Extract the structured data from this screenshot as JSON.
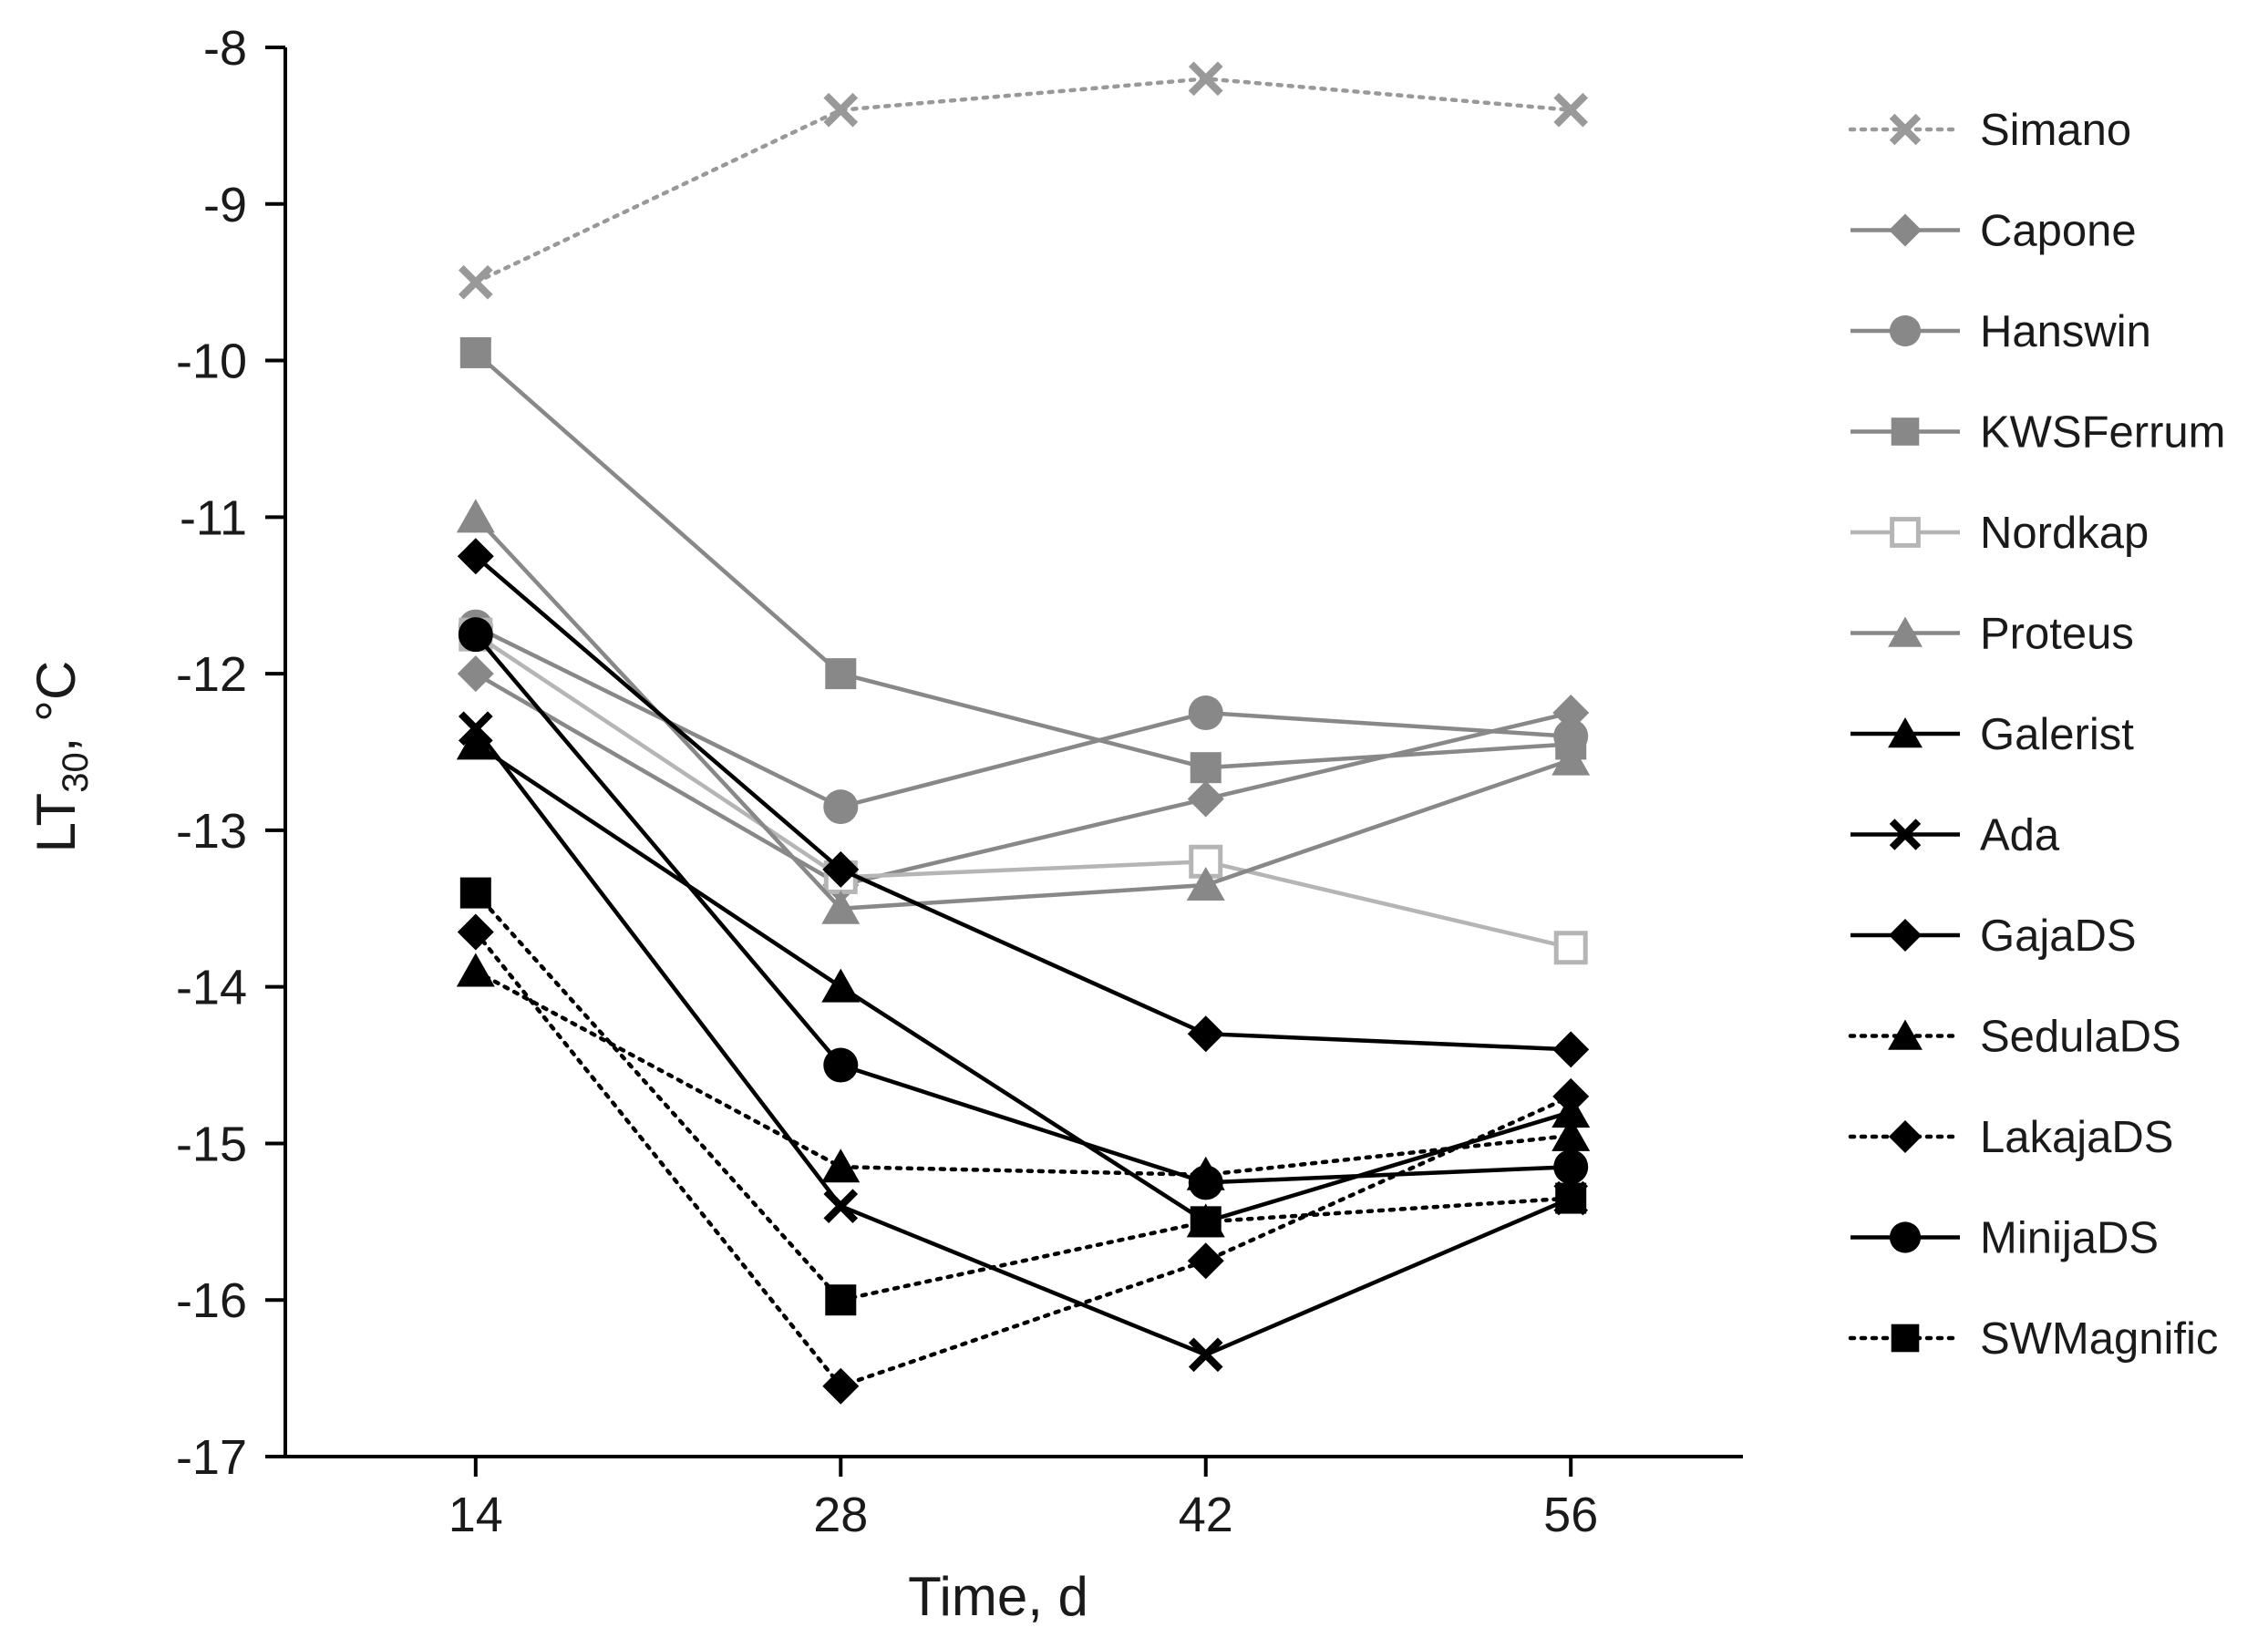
{
  "chart_data": {
    "type": "line",
    "title": "",
    "xlabel": "Time, d",
    "ylabel": {
      "main": "LT",
      "sub": "30",
      "unit": ", °C"
    },
    "x": [
      14,
      28,
      42,
      56
    ],
    "x_tick_labels": [
      "14",
      "28",
      "42",
      "56"
    ],
    "xlim": [
      6.7,
      62.6
    ],
    "ylim": [
      -17,
      -8
    ],
    "y_ticks": [
      -8,
      -9,
      -10,
      -11,
      -12,
      -13,
      -14,
      -15,
      -16,
      -17
    ],
    "y_tick_labels": [
      "-8",
      "-9",
      "-10",
      "-11",
      "-12",
      "-13",
      "-14",
      "-15",
      "-16",
      "-17"
    ],
    "grid": false,
    "legend_position": "right",
    "series": [
      {
        "name": "Simano",
        "values": [
          -9.5,
          -8.4,
          -8.2,
          -8.4
        ],
        "color": "#999999",
        "marker": "x",
        "line": "dotted"
      },
      {
        "name": "Capone",
        "values": [
          -12.0,
          -13.35,
          -12.8,
          -12.25
        ],
        "color": "#888888",
        "marker": "diamond",
        "line": "solid"
      },
      {
        "name": "Hanswin",
        "values": [
          -11.7,
          -12.85,
          -12.25,
          -12.4
        ],
        "color": "#888888",
        "marker": "circle",
        "line": "solid"
      },
      {
        "name": "KWSFerrum",
        "values": [
          -9.95,
          -12.0,
          -12.6,
          -12.45
        ],
        "color": "#888888",
        "marker": "square",
        "line": "solid"
      },
      {
        "name": "Nordkap",
        "values": [
          -11.75,
          -13.3,
          -13.2,
          -13.75
        ],
        "color": "#b5b5b5",
        "marker": "square-open",
        "line": "solid"
      },
      {
        "name": "Proteus",
        "values": [
          -11.0,
          -13.5,
          -13.35,
          -12.55
        ],
        "color": "#888888",
        "marker": "triangle",
        "line": "solid"
      },
      {
        "name": "Galerist",
        "values": [
          -12.45,
          -14.0,
          -15.5,
          -14.8
        ],
        "color": "#000000",
        "marker": "triangle",
        "line": "solid"
      },
      {
        "name": "Ada",
        "values": [
          -12.35,
          -15.4,
          -16.35,
          -15.35
        ],
        "color": "#000000",
        "marker": "x",
        "line": "solid"
      },
      {
        "name": "GajaDS",
        "values": [
          -11.25,
          -13.25,
          -14.3,
          -14.4
        ],
        "color": "#000000",
        "marker": "diamond",
        "line": "solid"
      },
      {
        "name": "SedulaDS",
        "values": [
          -13.9,
          -15.15,
          -15.2,
          -14.95
        ],
        "color": "#000000",
        "marker": "triangle",
        "line": "dotted"
      },
      {
        "name": "LakajaDS",
        "values": [
          -13.65,
          -16.55,
          -15.75,
          -14.7
        ],
        "color": "#000000",
        "marker": "diamond",
        "line": "dotted"
      },
      {
        "name": "MinijaDS",
        "values": [
          -11.75,
          -14.5,
          -15.25,
          -15.15
        ],
        "color": "#000000",
        "marker": "circle",
        "line": "solid"
      },
      {
        "name": "SWMagnific",
        "values": [
          -13.4,
          -16.0,
          -15.5,
          -15.35
        ],
        "color": "#000000",
        "marker": "square",
        "line": "dotted"
      }
    ]
  }
}
